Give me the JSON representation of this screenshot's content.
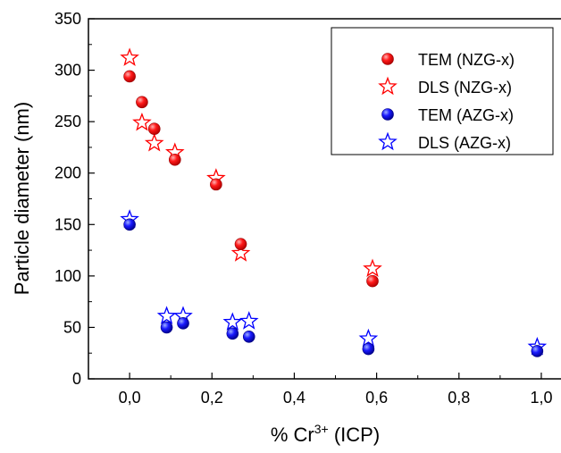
{
  "chart_data": {
    "type": "scatter",
    "xlabel": "% Cr",
    "xlabel_sup": "3+",
    "xlabel_suffix": " (ICP)",
    "ylabel": "Particle diameter (nm)",
    "xlim": [
      -0.1,
      1.05
    ],
    "ylim": [
      0,
      350
    ],
    "xticks": [
      0.0,
      0.2,
      0.4,
      0.6,
      0.8,
      1.0
    ],
    "xtick_labels": [
      "0,0",
      "0,2",
      "0,4",
      "0,6",
      "0,8",
      "1,0"
    ],
    "yticks": [
      0,
      50,
      100,
      150,
      200,
      250,
      300,
      350
    ],
    "ytick_labels": [
      "0",
      "50",
      "100",
      "150",
      "200",
      "250",
      "300",
      "350"
    ],
    "grid": false,
    "legend_position": "top-right",
    "series": [
      {
        "name": "TEM (NZG-x)",
        "marker": "filled-circle",
        "color": "#ff0000",
        "x": [
          0.0,
          0.03,
          0.06,
          0.11,
          0.21,
          0.27,
          0.59
        ],
        "y": [
          294,
          269,
          243,
          213,
          189,
          131,
          95
        ]
      },
      {
        "name": "DLS (NZG-x)",
        "marker": "open-star",
        "color": "#ff0000",
        "x": [
          0.0,
          0.03,
          0.06,
          0.11,
          0.21,
          0.27,
          0.59
        ],
        "y": [
          312,
          249,
          229,
          220,
          195,
          122,
          107
        ]
      },
      {
        "name": "TEM (AZG-x)",
        "marker": "filled-circle",
        "color": "#0000ff",
        "x": [
          0.0,
          0.09,
          0.13,
          0.25,
          0.29,
          0.58,
          0.99
        ],
        "y": [
          150,
          50,
          54,
          44,
          41,
          29,
          27
        ]
      },
      {
        "name": "DLS (AZG-x)",
        "marker": "open-star",
        "color": "#0000ff",
        "x": [
          0.0,
          0.09,
          0.13,
          0.25,
          0.29,
          0.58,
          0.99
        ],
        "y": [
          155,
          61,
          61,
          55,
          56,
          39,
          31
        ]
      }
    ]
  }
}
